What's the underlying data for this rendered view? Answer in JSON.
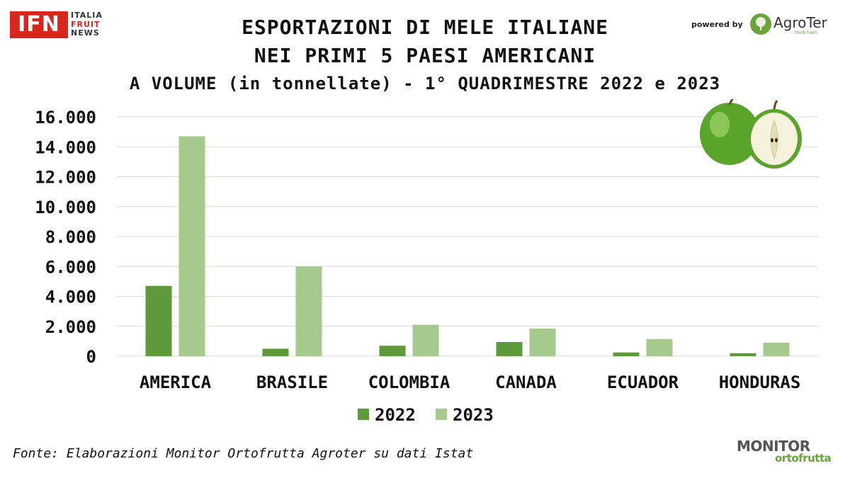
{
  "header": {
    "title_line1": "ESPORTAZIONI DI MELE ITALIANE",
    "title_line2": "NEI PRIMI 5 PAESI AMERICANI",
    "subtitle": "A VOLUME (in tonnellate) - 1° QUADRIMESTRE 2022 e 2023"
  },
  "logos": {
    "ifn_main": "IFN",
    "ifn_line1": "ITALIA",
    "ifn_line2": "FRUIT",
    "ifn_line3": "NEWS",
    "powered_by": "powered by",
    "agroter": "AgroTer",
    "agroter_tagline": "think fresh",
    "monitor_main": "MONITOR",
    "monitor_sub": "ortofrutta"
  },
  "footer": {
    "source": "Fonte: Elaborazioni Monitor Ortofrutta Agroter su dati Istat"
  },
  "colors": {
    "series_2022": "#5e9a3c",
    "series_2023": "#a6c98e",
    "gridline": "#d9d9d9",
    "brand_red": "#d9261c",
    "brand_green": "#6aa43a"
  },
  "icons": {
    "chart_decoration": "green-apple-icon"
  },
  "chart_data": {
    "type": "bar",
    "categories": [
      "AMERICA",
      "BRASILE",
      "COLOMBIA",
      "CANADA",
      "ECUADOR",
      "HONDURAS"
    ],
    "series": [
      {
        "name": "2022",
        "values": [
          4700,
          500,
          700,
          950,
          250,
          200
        ]
      },
      {
        "name": "2023",
        "values": [
          14700,
          6000,
          2100,
          1850,
          1150,
          900
        ]
      }
    ],
    "yticks": [
      "0",
      "2.000",
      "4.000",
      "6.000",
      "8.000",
      "10.000",
      "12.000",
      "14.000",
      "16.000"
    ],
    "ylim": [
      0,
      16000
    ],
    "ystep": 2000,
    "grid": true,
    "legend": "bottom-center",
    "xlabel": "",
    "ylabel": ""
  }
}
